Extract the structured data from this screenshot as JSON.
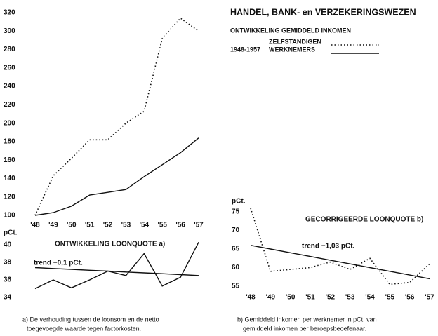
{
  "header": {
    "title": "HANDEL, BANK- en VERZEKERINGSWEZEN",
    "subtitle": "ONTWIKKELING GEMIDDELD INKOMEN",
    "period": "1948-1957"
  },
  "chart_data": [
    {
      "type": "line",
      "categories": [
        "'48",
        "'49",
        "'50",
        "'51",
        "'52",
        "'53",
        "'54",
        "'55",
        "'56",
        "'57"
      ],
      "series": [
        {
          "name": "ZELFSTANDIGEN",
          "style": "dotted",
          "color": "#111111",
          "values": [
            100,
            143,
            162,
            182,
            182,
            200,
            213,
            292,
            314,
            300
          ]
        },
        {
          "name": "WERKNEMERS",
          "style": "solid",
          "color": "#111111",
          "values": [
            100,
            103,
            110,
            122,
            125,
            128,
            142,
            155,
            168,
            184
          ]
        }
      ],
      "ylim": [
        100,
        320
      ],
      "yticks": [
        100,
        120,
        140,
        160,
        180,
        200,
        220,
        240,
        260,
        280,
        300,
        320
      ]
    },
    {
      "type": "line",
      "title": "ONTWIKKELING LOONQUOTE a)",
      "y_label": "pCt.",
      "series": [
        {
          "style": "solid",
          "color": "#111111",
          "values": [
            35.0,
            36.0,
            35.1,
            36.0,
            37.0,
            36.5,
            39.0,
            35.3,
            36.3,
            40.3
          ]
        },
        {
          "name": "trend −0,1 pCt.",
          "style": "solid",
          "color": "#111111",
          "values": [
            37.4,
            37.3,
            37.2,
            37.1,
            37.0,
            36.9,
            36.8,
            36.7,
            36.6,
            36.5
          ]
        }
      ],
      "ylim": [
        34,
        40
      ],
      "yticks": [
        34,
        36,
        38,
        40
      ]
    },
    {
      "type": "line",
      "title": "GECORRIGEERDE LOONQUOTE b)",
      "y_label": "pCt.",
      "categories": [
        "'48",
        "'49",
        "'50",
        "'51",
        "'52",
        "'53",
        "'54",
        "'55",
        "'56",
        "'57"
      ],
      "series": [
        {
          "style": "dotted",
          "color": "#111111",
          "values": [
            76,
            59,
            59.5,
            60,
            61.5,
            59.5,
            62.5,
            55.5,
            56,
            61
          ]
        },
        {
          "name": "trend −1,03 pCt.",
          "style": "solid",
          "color": "#111111",
          "values": [
            66,
            65,
            64,
            63,
            62,
            61,
            60,
            59,
            58,
            57
          ]
        }
      ],
      "ylim": [
        55,
        75
      ],
      "yticks": [
        55,
        60,
        65,
        70,
        75
      ]
    }
  ],
  "footnotes": [
    [
      "a) De verhouding tussen de loonsom en de netto",
      "toegevoegde waarde tegen factorkosten."
    ],
    [
      "b) Gemiddeld inkomen per werknemer in pCt. van",
      "gemiddeld inkomen per beroepsbeoefenaar."
    ]
  ]
}
